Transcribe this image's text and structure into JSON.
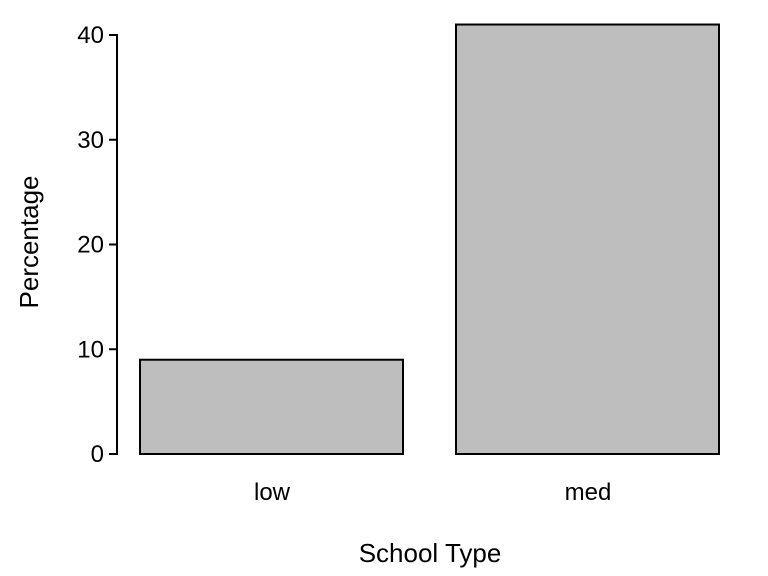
{
  "chart_data": {
    "type": "bar",
    "categories": [
      "low",
      "med"
    ],
    "values": [
      9,
      41
    ],
    "xlabel": "School Type",
    "ylabel": "Percentage",
    "ylim": [
      0,
      42
    ],
    "yticks": [
      0,
      10,
      20,
      30,
      40
    ],
    "grid": false,
    "legend": "none",
    "colors": {
      "bar_fill": "#bebebe",
      "bar_stroke": "#000000",
      "axis": "#000000",
      "background": "#ffffff"
    }
  }
}
